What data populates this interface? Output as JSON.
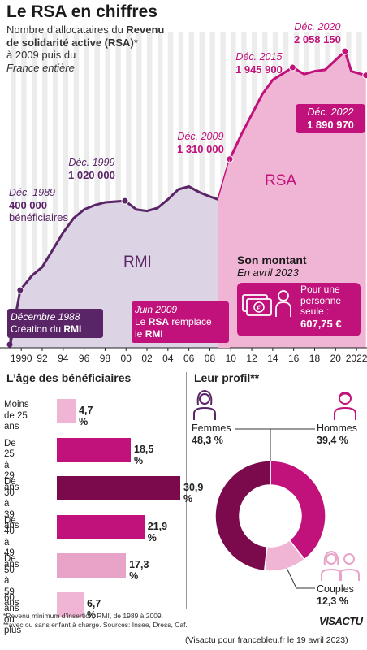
{
  "header": {
    "title": "Le RSA en chiffres",
    "subtitle_line1_pre": "Nombre d’allocataires du ",
    "subtitle_line1_bold": "Revenu",
    "subtitle_line2_bold": "de solidarité active (RSA)",
    "subtitle_line2_post": "*",
    "subtitle_line3": "à 2009 puis du",
    "subtitle_line4_italic": "France entière"
  },
  "colors": {
    "rmi_purple": "#5a2567",
    "rsa_magenta": "#c0127a",
    "rmi_fill": "#dcd3e4",
    "rsa_fill": "#f0b5d4",
    "age_dark": "#7a0a4c",
    "age_mid": "#c0127a",
    "age_light": "#f0b5d4",
    "age_pale": "#e8a3c8"
  },
  "chart_data": [
    {
      "type": "area",
      "x_ticks": [
        "1990",
        "92",
        "94",
        "96",
        "98",
        "00",
        "02",
        "04",
        "06",
        "08",
        "10",
        "12",
        "14",
        "16",
        "18",
        "20",
        "2022"
      ],
      "xlim": [
        1988,
        2023
      ],
      "ylim": [
        0,
        2200000
      ],
      "series": [
        {
          "name": "RMI",
          "x": [
            1988.9,
            1989.9,
            1991,
            1992,
            1993,
            1994,
            1995,
            1996,
            1997,
            1998,
            1999.9,
            2001,
            2002,
            2003,
            2004,
            2005,
            2006,
            2007,
            2008,
            2008.8
          ],
          "values": [
            0,
            400000,
            500000,
            560000,
            680000,
            800000,
            900000,
            960000,
            990000,
            1010000,
            1020000,
            960000,
            950000,
            970000,
            1030000,
            1100000,
            1120000,
            1080000,
            1050000,
            1030000
          ]
        },
        {
          "name": "RSA",
          "x": [
            2009.9,
            2011,
            2012,
            2013,
            2014,
            2015.9,
            2017,
            2018,
            2019,
            2020.9,
            2021.5,
            2022.9
          ],
          "values": [
            1310000,
            1480000,
            1620000,
            1760000,
            1860000,
            1945900,
            1900000,
            1920000,
            1930000,
            2058150,
            1920000,
            1890970
          ]
        }
      ],
      "annotations": [
        {
          "date": "Déc. 1989",
          "value": "400 000",
          "suffix": "bénéficiaires"
        },
        {
          "date": "Déc. 1999",
          "value": "1 020 000"
        },
        {
          "date": "Déc. 2009",
          "value": "1 310 000"
        },
        {
          "date": "Déc. 2015",
          "value": "1 945 900"
        },
        {
          "date": "Déc. 2020",
          "value": "2 058 150"
        },
        {
          "date": "Déc. 2022",
          "value": "1 890 970"
        }
      ],
      "area_labels": {
        "rmi": "RMI",
        "rsa": "RSA"
      },
      "events": [
        {
          "line1": "Décembre 1988",
          "line2_pre": "Création du ",
          "line2_bold": "RMI"
        },
        {
          "line1": "Juin 2009",
          "line2_pre": "Le ",
          "line2_bold": "RSA",
          "line2_post": " remplace",
          "line3_pre": "le ",
          "line3_bold": "RMI"
        }
      ],
      "amount": {
        "title": "Son montant",
        "date": "En avril 2023",
        "text_line1": "Pour une",
        "text_line2": "personne",
        "text_line3": "seule :",
        "value": "607,75 €"
      }
    },
    {
      "type": "bar",
      "title": "L’âge des bénéficiaires",
      "categories": [
        [
          "Moins",
          "de 25 ans"
        ],
        [
          "De 25",
          "à 29 ans"
        ],
        [
          "De 30",
          "à 39 ans"
        ],
        [
          "De 40",
          "à 49 ans"
        ],
        [
          "De 50",
          "à 59 ans"
        ],
        [
          "60 ans",
          "ou plus"
        ]
      ],
      "values": [
        4.7,
        18.5,
        30.9,
        21.9,
        17.3,
        6.7
      ],
      "value_labels": [
        "4,7 %",
        "18,5 %",
        "30,9 %",
        "21,9 %",
        "17,3 %",
        "6,7 %"
      ]
    },
    {
      "type": "pie",
      "title": "Leur profil**",
      "slices": [
        {
          "name": "Femmes",
          "value": 48.3,
          "label": "48,3 %"
        },
        {
          "name": "Hommes",
          "value": 39.4,
          "label": "39,4 %"
        },
        {
          "name": "Couples",
          "value": 12.3,
          "label": "12,3 %"
        }
      ]
    }
  ],
  "footer": {
    "note1": "*Revenu minimum d’insertion, RMI, de 1989 à 2009.",
    "note2": "**avec ou sans enfant à charge. Sources: Insee, Dress, Caf.",
    "logo": "VISACTU",
    "credit": "(Visactu pour francebleu.fr le 19 avril 2023)"
  }
}
